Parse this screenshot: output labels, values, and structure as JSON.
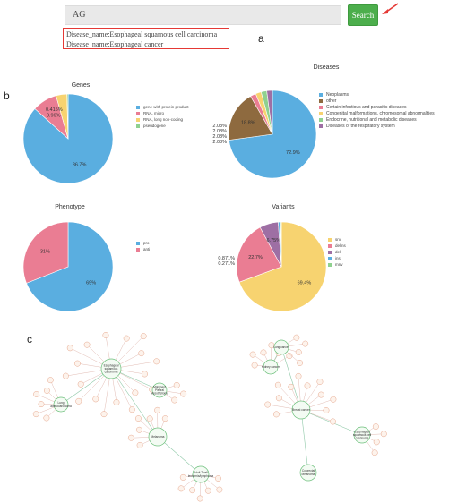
{
  "search": {
    "value": "AG",
    "button_label": "Search"
  },
  "suggestions": [
    "Disease_name:Esophageal squamous cell carcinoma",
    "Disease_name:Esophageal cancer"
  ],
  "panel_labels": {
    "a": "a",
    "b": "b",
    "c": "c"
  },
  "colors": {
    "blue": "#5aaee0",
    "pink": "#ea7d93",
    "yellow": "#f7d370",
    "green": "#8fd18f",
    "brown": "#8e6a3f",
    "purple": "#9e6fa4",
    "teal": "#5bb8b0",
    "search_green": "#4cae4c"
  },
  "chart_data": [
    {
      "type": "pie",
      "title": "Genes",
      "categories": [
        "gene with protein product",
        "RNA, micro",
        "RNA, long non-coding",
        "pseudogene"
      ],
      "values": [
        86.7,
        8.96,
        3.93,
        0.415
      ],
      "labels": [
        "86.7%",
        "8.96%",
        "",
        "0.415%"
      ],
      "colors": [
        "#5aaee0",
        "#ea7d93",
        "#f7d370",
        "#8fd18f"
      ],
      "legend": "right"
    },
    {
      "type": "pie",
      "title": "Diseases",
      "categories": [
        "Neoplasms",
        "other",
        "Certain infectious and parasitic diseases",
        "Congenital malformations, chromosomal abnormalities",
        "Endocrine, nutritional and metabolic diseases",
        "Diseases of the respiratory system"
      ],
      "values": [
        72.9,
        18.8,
        2.08,
        2.08,
        2.08,
        2.08
      ],
      "labels": [
        "72.9%",
        "18.8%",
        "2.08%",
        "2.08%",
        "2.08%",
        "2.08%"
      ],
      "colors": [
        "#5aaee0",
        "#8e6a3f",
        "#ea7d93",
        "#f7d370",
        "#8fd18f",
        "#9e6fa4"
      ],
      "legend": "right"
    },
    {
      "type": "pie",
      "title": "Phenotype",
      "categories": [
        "pro",
        "anti"
      ],
      "values": [
        69,
        31
      ],
      "labels": [
        "69%",
        "31%"
      ],
      "colors": [
        "#5aaee0",
        "#ea7d93"
      ],
      "legend": "right"
    },
    {
      "type": "pie",
      "title": "Variants",
      "categories": [
        "snv",
        "delins",
        "del",
        "ins",
        "mnv"
      ],
      "values": [
        69.4,
        22.7,
        6.75,
        0.871,
        0.271
      ],
      "labels": [
        "69.4%",
        "22.7%",
        "6.75%",
        "0.871%",
        "0.271%"
      ],
      "colors": [
        "#f7d370",
        "#ea7d93",
        "#9e6fa4",
        "#5aaee0",
        "#8fd18f"
      ],
      "legend": "right"
    }
  ],
  "network": {
    "hubs": [
      "Esophageal squamous carcinoma",
      "Malignant Pleural Mesothelioma",
      "Lung adenocarcinoma",
      "Melanoma",
      "Adult T-cell leukemia/lymphoma",
      "Kidney cancer",
      "Lung cancer",
      "Breast cancer",
      "Esophageal squamous cell carcinoma",
      "Colorectal Melanoma"
    ]
  }
}
